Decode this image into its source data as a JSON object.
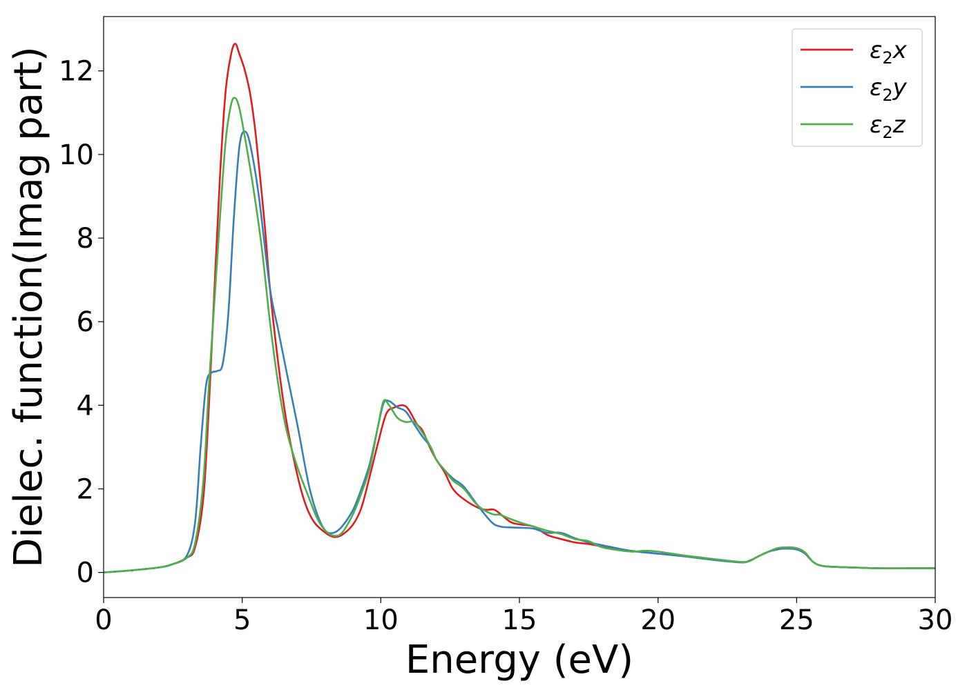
{
  "chart_data": {
    "type": "line",
    "title": "",
    "xlabel": "Energy (eV)",
    "ylabel": "Dielec. function(Imag part)",
    "xlim": [
      0,
      30
    ],
    "ylim": [
      -0.6,
      13.3
    ],
    "xticks": [
      0,
      5,
      10,
      15,
      20,
      25,
      30
    ],
    "yticks": [
      0,
      2,
      4,
      6,
      8,
      10,
      12
    ],
    "grid": false,
    "legend_position": "top-right",
    "series": [
      {
        "name": "x",
        "name_symbol": "ε",
        "name_subscript": "2",
        "color": "#e41a1c",
        "x": [
          0,
          1,
          2,
          2.5,
          3,
          3.3,
          3.6,
          3.8,
          4.0,
          4.2,
          4.4,
          4.6,
          4.75,
          4.9,
          5.1,
          5.3,
          5.5,
          5.8,
          6.0,
          6.3,
          6.6,
          7.0,
          7.3,
          7.6,
          8.0,
          8.3,
          8.6,
          9.0,
          9.3,
          9.6,
          9.9,
          10.2,
          10.5,
          10.8,
          11.0,
          11.3,
          11.5,
          11.8,
          12.0,
          12.3,
          12.6,
          13.0,
          13.5,
          13.8,
          14.1,
          14.4,
          14.7,
          15.0,
          15.5,
          16.0,
          16.5,
          17.0,
          17.5,
          18.0,
          19.0,
          20.0,
          21.0,
          22.0,
          23.0,
          23.3,
          23.6,
          24.0,
          24.3,
          24.6,
          25.0,
          25.3,
          25.6,
          26.0,
          27.0,
          28.0,
          29.0,
          30.0
        ],
        "values": [
          0.0,
          0.05,
          0.12,
          0.2,
          0.35,
          0.6,
          1.8,
          4.0,
          6.8,
          9.5,
          11.5,
          12.4,
          12.65,
          12.4,
          12.0,
          11.4,
          10.4,
          8.4,
          6.8,
          5.0,
          3.6,
          2.3,
          1.6,
          1.2,
          0.95,
          0.85,
          0.9,
          1.15,
          1.55,
          2.3,
          3.1,
          3.8,
          3.95,
          4.0,
          3.9,
          3.55,
          3.4,
          2.95,
          2.7,
          2.4,
          2.0,
          1.75,
          1.55,
          1.5,
          1.5,
          1.35,
          1.2,
          1.15,
          1.1,
          0.9,
          0.8,
          0.72,
          0.68,
          0.62,
          0.52,
          0.45,
          0.4,
          0.32,
          0.25,
          0.28,
          0.38,
          0.5,
          0.55,
          0.6,
          0.58,
          0.48,
          0.25,
          0.15,
          0.12,
          0.1,
          0.1,
          0.1
        ]
      },
      {
        "name": "y",
        "name_symbol": "ε",
        "name_subscript": "2",
        "color": "#377eb8",
        "x": [
          0,
          1,
          2,
          2.5,
          3,
          3.3,
          3.5,
          3.7,
          3.9,
          4.1,
          4.3,
          4.5,
          4.7,
          4.9,
          5.1,
          5.3,
          5.6,
          6.0,
          6.3,
          6.6,
          7.0,
          7.4,
          7.7,
          8.0,
          8.3,
          8.6,
          9.0,
          9.3,
          9.6,
          9.9,
          10.1,
          10.3,
          10.6,
          10.9,
          11.2,
          11.5,
          11.8,
          12.0,
          12.3,
          12.6,
          13.0,
          13.5,
          14.0,
          14.3,
          14.6,
          15.0,
          15.5,
          16.0,
          16.5,
          17.0,
          17.5,
          18.0,
          19.0,
          20.0,
          21.0,
          22.0,
          23.0,
          23.3,
          23.6,
          24.0,
          24.3,
          24.6,
          25.0,
          25.3,
          25.6,
          26.0,
          27.0,
          28.0,
          29.0,
          30.0
        ],
        "values": [
          0.0,
          0.05,
          0.12,
          0.2,
          0.4,
          1.2,
          3.0,
          4.5,
          4.78,
          4.82,
          5.0,
          6.2,
          8.5,
          10.2,
          10.55,
          10.2,
          9.0,
          6.8,
          5.8,
          4.8,
          3.5,
          2.1,
          1.4,
          1.0,
          0.95,
          1.1,
          1.5,
          2.0,
          2.6,
          3.5,
          4.05,
          4.1,
          3.95,
          3.85,
          3.55,
          3.25,
          3.0,
          2.7,
          2.45,
          2.25,
          2.05,
          1.6,
          1.2,
          1.1,
          1.08,
          1.07,
          1.05,
          0.95,
          0.95,
          0.82,
          0.72,
          0.65,
          0.52,
          0.45,
          0.38,
          0.3,
          0.24,
          0.28,
          0.38,
          0.5,
          0.55,
          0.57,
          0.55,
          0.45,
          0.25,
          0.15,
          0.12,
          0.1,
          0.1,
          0.1
        ]
      },
      {
        "name": "z",
        "name_symbol": "ε",
        "name_subscript": "2",
        "color": "#4daf4a",
        "x": [
          0,
          1,
          2,
          2.5,
          3,
          3.3,
          3.6,
          3.8,
          4.0,
          4.2,
          4.4,
          4.6,
          4.75,
          4.9,
          5.1,
          5.4,
          5.7,
          6.0,
          6.3,
          6.6,
          7.0,
          7.4,
          7.7,
          8.0,
          8.3,
          8.6,
          9.0,
          9.3,
          9.6,
          9.9,
          10.1,
          10.3,
          10.6,
          10.9,
          11.2,
          11.5,
          11.8,
          12.0,
          12.3,
          12.6,
          13.0,
          13.5,
          14.0,
          14.3,
          14.6,
          15.0,
          15.5,
          16.0,
          16.5,
          17.0,
          17.5,
          18.0,
          19.0,
          19.5,
          20.0,
          21.0,
          22.0,
          23.0,
          23.3,
          23.6,
          24.0,
          24.3,
          24.6,
          25.0,
          25.3,
          25.6,
          26.0,
          27.0,
          28.0,
          29.0,
          30.0
        ],
        "values": [
          0.0,
          0.05,
          0.12,
          0.2,
          0.35,
          0.7,
          2.2,
          4.5,
          6.5,
          8.5,
          10.3,
          11.2,
          11.35,
          11.1,
          10.4,
          9.2,
          7.8,
          6.0,
          4.5,
          3.4,
          2.5,
          1.8,
          1.3,
          1.0,
          0.88,
          0.95,
          1.4,
          1.9,
          2.5,
          3.5,
          4.1,
          4.0,
          3.7,
          3.6,
          3.6,
          3.35,
          3.0,
          2.7,
          2.45,
          2.2,
          2.0,
          1.6,
          1.4,
          1.38,
          1.3,
          1.2,
          1.1,
          1.0,
          0.92,
          0.8,
          0.75,
          0.6,
          0.5,
          0.52,
          0.5,
          0.4,
          0.32,
          0.25,
          0.27,
          0.38,
          0.5,
          0.58,
          0.6,
          0.58,
          0.48,
          0.25,
          0.15,
          0.12,
          0.1,
          0.1,
          0.1
        ]
      }
    ]
  }
}
